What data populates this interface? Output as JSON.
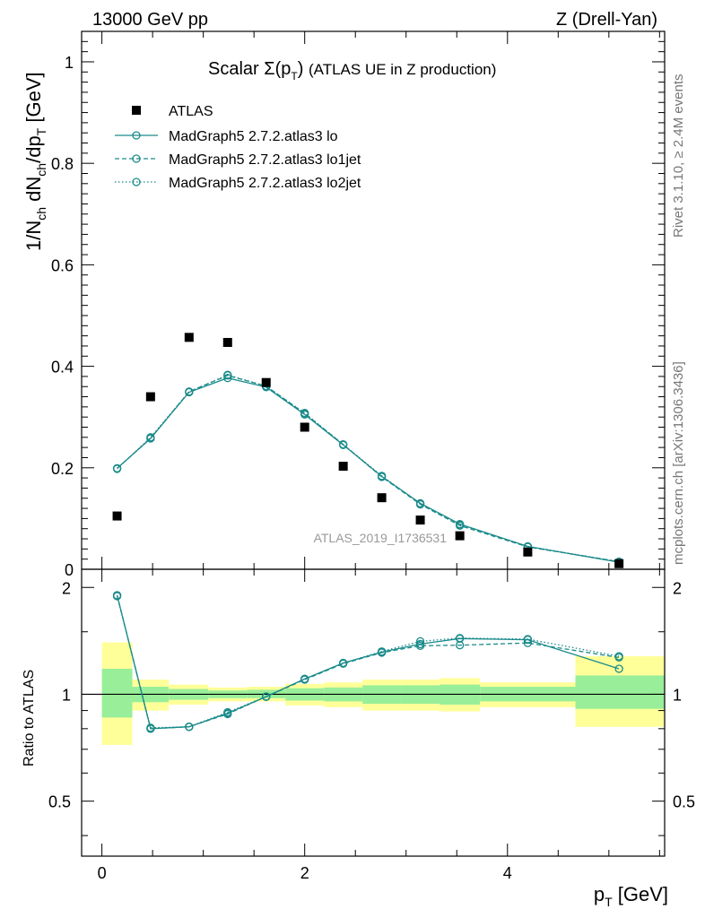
{
  "header": {
    "energy_label": "13000 GeV pp",
    "process_label": "Z (Drell-Yan)"
  },
  "side_labels": {
    "rivet": "Rivet 3.1.10, ≥ 2.4M events",
    "mcplots": "mcplots.cern.ch [arXiv:1306.3436]"
  },
  "chart_data": {
    "type": "scatter",
    "title": "Scalar Σ(p_T) (ATLAS UE in Z production)",
    "analysis_id": "ATLAS_2019_I1736531",
    "xlabel": "p_T [GeV]",
    "ylabel": "1/N_ch dN_ch/dp_T [GeV]",
    "ratio_ylabel": "Ratio to ATLAS",
    "xlim": [
      -0.2,
      5.55
    ],
    "ylim": [
      0,
      1.06
    ],
    "ratio_ylim": [
      0.35,
      2.25
    ],
    "x_ticks": [
      "0",
      "2",
      "4"
    ],
    "y_ticks": [
      "0",
      "0.2",
      "0.4",
      "0.6",
      "0.8",
      "1"
    ],
    "ratio_ticks": [
      "0.5",
      "1",
      "2"
    ],
    "legend_position": "top-left",
    "x": [
      0.15,
      0.48,
      0.86,
      1.24,
      1.62,
      2.0,
      2.38,
      2.76,
      3.14,
      3.53,
      4.2,
      5.1
    ],
    "bin_edges": [
      0.0,
      0.3,
      0.66,
      1.05,
      1.43,
      1.81,
      2.19,
      2.57,
      2.95,
      3.33,
      3.73,
      4.67,
      5.55
    ],
    "series": [
      {
        "name": "ATLAS",
        "style": "marker",
        "values": [
          0.105,
          0.34,
          0.457,
          0.447,
          0.368,
          0.28,
          0.203,
          0.141,
          0.097,
          0.066,
          0.034,
          0.011
        ]
      },
      {
        "name": "MadGraph5 2.7.2.atlas3 lo",
        "style": "solid",
        "values": [
          0.199,
          0.258,
          0.349,
          0.377,
          0.359,
          0.305,
          0.245,
          0.183,
          0.13,
          0.089,
          0.045,
          0.014
        ]
      },
      {
        "name": "MadGraph5 2.7.2.atlas3 lo1jet",
        "style": "dashed",
        "values": [
          0.199,
          0.258,
          0.35,
          0.382,
          0.361,
          0.307,
          0.246,
          0.182,
          0.128,
          0.086,
          0.044,
          0.015
        ]
      },
      {
        "name": "MadGraph5 2.7.2.atlas3 lo2jet",
        "style": "dotted",
        "values": [
          0.198,
          0.26,
          0.35,
          0.383,
          0.361,
          0.308,
          0.246,
          0.184,
          0.129,
          0.088,
          0.045,
          0.015
        ]
      }
    ],
    "ratio_series": [
      {
        "name": "lo",
        "values": [
          1.9,
          0.8,
          0.81,
          0.885,
          0.985,
          1.105,
          1.225,
          1.315,
          1.385,
          1.435,
          1.425,
          1.18
        ]
      },
      {
        "name": "lo1jet",
        "values": [
          1.9,
          0.8,
          0.81,
          0.88,
          0.985,
          1.1,
          1.22,
          1.31,
          1.37,
          1.375,
          1.395,
          1.27
        ]
      },
      {
        "name": "lo2jet",
        "values": [
          1.89,
          0.805,
          0.81,
          0.89,
          0.985,
          1.105,
          1.225,
          1.32,
          1.41,
          1.44,
          1.43,
          1.28
        ]
      }
    ],
    "band_stat_lower": [
      0.86,
      0.95,
      0.965,
      0.975,
      0.975,
      0.96,
      0.955,
      0.94,
      0.94,
      0.935,
      0.955,
      0.91
    ],
    "band_stat_upper": [
      1.18,
      1.05,
      1.035,
      1.025,
      1.03,
      1.04,
      1.045,
      1.06,
      1.06,
      1.065,
      1.05,
      1.13
    ],
    "band_total_lower": [
      0.72,
      0.9,
      0.935,
      0.955,
      0.955,
      0.93,
      0.92,
      0.9,
      0.9,
      0.895,
      0.92,
      0.81
    ],
    "band_total_upper": [
      1.4,
      1.1,
      1.065,
      1.045,
      1.05,
      1.07,
      1.08,
      1.1,
      1.1,
      1.11,
      1.08,
      1.28
    ]
  }
}
